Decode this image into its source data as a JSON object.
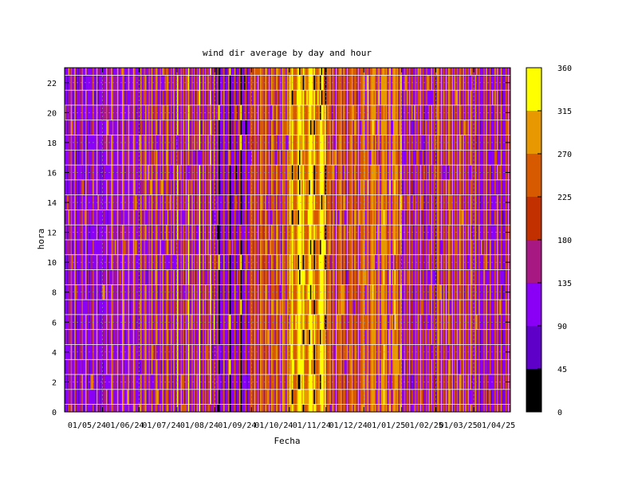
{
  "chart_data": {
    "type": "heatmap",
    "title": "wind dir average by day and hour",
    "xlabel": "Fecha",
    "ylabel": "hora",
    "x_start": "2024-05-01",
    "x_end": "2025-04-30",
    "x_ticks": [
      "01/05/24",
      "01/06/24",
      "01/07/24",
      "01/08/24",
      "01/09/24",
      "01/10/24",
      "01/11/24",
      "01/12/24",
      "01/01/25",
      "01/02/25",
      "01/03/25",
      "01/04/25"
    ],
    "ylim": [
      0,
      23
    ],
    "y_ticks": [
      "0",
      "2",
      "4",
      "6",
      "8",
      "10",
      "12",
      "14",
      "16",
      "18",
      "20",
      "22"
    ],
    "grid": true,
    "colorbar": {
      "range": [
        0,
        360
      ],
      "ticks": [
        "0",
        "45",
        "90",
        "135",
        "180",
        "225",
        "270",
        "315",
        "360"
      ],
      "bands": [
        {
          "from": 0,
          "to": 45,
          "color": "#000000"
        },
        {
          "from": 45,
          "to": 90,
          "color": "#5e00c8"
        },
        {
          "from": 90,
          "to": 135,
          "color": "#8a00f7"
        },
        {
          "from": 135,
          "to": 180,
          "color": "#a71883"
        },
        {
          "from": 180,
          "to": 225,
          "color": "#c23000"
        },
        {
          "from": 225,
          "to": 270,
          "color": "#d85a00"
        },
        {
          "from": 270,
          "to": 315,
          "color": "#e89800"
        },
        {
          "from": 315,
          "to": 360,
          "color": "#ffff00"
        }
      ]
    },
    "series": [
      {
        "period": "may-2024",
        "values": [
          105,
          120,
          95,
          140,
          130,
          250,
          110,
          100,
          290
        ]
      },
      {
        "period": "jun-2024",
        "values": [
          130,
          115,
          290,
          250,
          110,
          140,
          120,
          290,
          105
        ]
      },
      {
        "period": "jul-2024",
        "values": [
          120,
          130,
          250,
          280,
          110,
          140,
          240,
          105,
          290
        ]
      },
      {
        "period": "aug-2024",
        "values": [
          250,
          130,
          330,
          140,
          110,
          260,
          120,
          250,
          100
        ]
      },
      {
        "period": "sep-2024",
        "values": [
          20,
          110,
          100,
          130,
          250,
          80,
          110,
          140,
          250
        ]
      },
      {
        "period": "oct-2024",
        "values": [
          240,
          120,
          290,
          250,
          140,
          260,
          110,
          290,
          250
        ]
      },
      {
        "period": "nov-2024",
        "values": [
          250,
          290,
          340,
          345,
          330,
          290,
          350,
          260,
          250
        ]
      },
      {
        "period": "dec-2024",
        "values": [
          250,
          290,
          120,
          260,
          250,
          110,
          290,
          140,
          250
        ]
      },
      {
        "period": "jan-2025",
        "values": [
          300,
          260,
          290,
          140,
          250,
          300,
          120,
          260,
          290
        ]
      },
      {
        "period": "feb-2025",
        "values": [
          110,
          250,
          130,
          290,
          110,
          240,
          100,
          130,
          250
        ]
      },
      {
        "period": "mar-2025",
        "values": [
          250,
          120,
          290,
          110,
          250,
          140,
          260,
          110,
          290
        ]
      },
      {
        "period": "apr-2025",
        "values": [
          110,
          250,
          140,
          290,
          110,
          120,
          250,
          100,
          110
        ]
      }
    ]
  }
}
